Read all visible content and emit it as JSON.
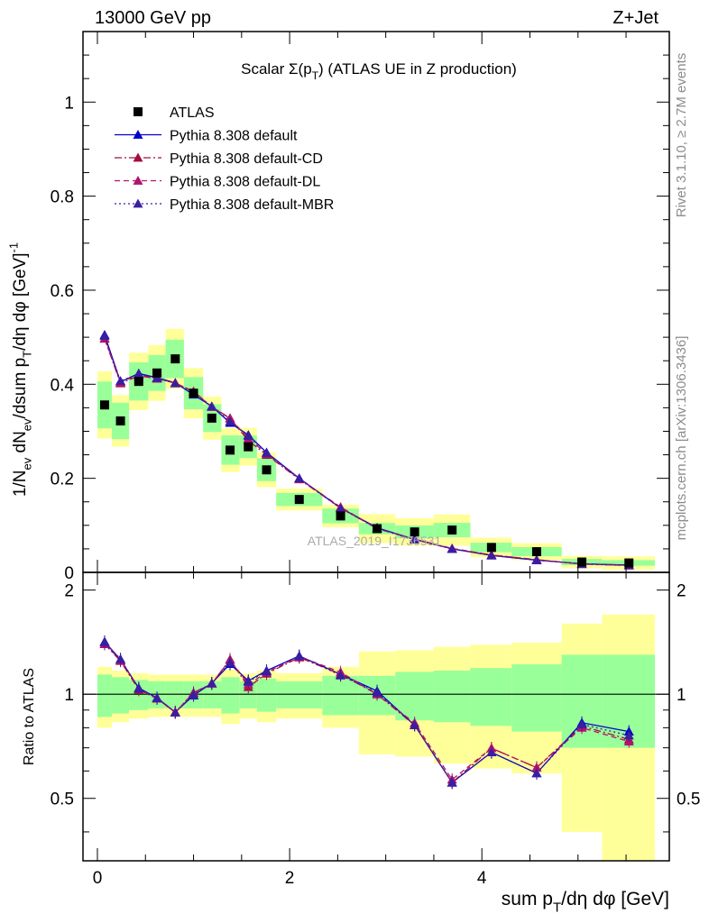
{
  "header": {
    "left": "13000 GeV pp",
    "right": "Z+Jet"
  },
  "side_labels": {
    "rivet": "Rivet 3.1.10, ≥ 2.7M events",
    "mcplots": "mcplots.cern.ch [arXiv:1306.3436]"
  },
  "chart_data": {
    "type": "scatter",
    "title": "Scalar Σ(p_T) (ATLAS UE in Z production)",
    "watermark": "ATLAS_2019_I1736531",
    "xlabel": "sum p_T/dη dφ [GeV]",
    "ylabel": "1/N_ev dN_ev/dsum p_T/dη dφ [GeV]^-1",
    "ratio_ylabel": "Ratio to ATLAS",
    "xlim": [
      -0.15,
      5.95
    ],
    "ylim": [
      0,
      1.15
    ],
    "ratio_ylim": [
      0.33,
      2.25
    ],
    "x_ticks": [
      "0",
      "2",
      "4"
    ],
    "y_ticks": [
      "0",
      "0.2",
      "0.4",
      "0.6",
      "0.8",
      "1"
    ],
    "ratio_ticks": [
      "0.5",
      "1",
      "2"
    ],
    "legend_position": "top-left",
    "legend": [
      {
        "label": "ATLAS",
        "marker": "square",
        "color": "#000000",
        "line": "none"
      },
      {
        "label": "Pythia 8.308 default",
        "marker": "triangle",
        "color": "#0000cc",
        "line": "solid"
      },
      {
        "label": "Pythia 8.308 default-CD",
        "marker": "triangle",
        "color": "#a50d3d",
        "line": "dashdot"
      },
      {
        "label": "Pythia 8.308 default-DL",
        "marker": "triangle",
        "color": "#b3126e",
        "line": "dashed"
      },
      {
        "label": "Pythia 8.308 default-MBR",
        "marker": "triangle",
        "color": "#3a1ea0",
        "line": "dotted"
      }
    ],
    "x": [
      0.075,
      0.24,
      0.43,
      0.62,
      0.81,
      1.0,
      1.19,
      1.38,
      1.57,
      1.76,
      2.1,
      2.53,
      2.91,
      3.3,
      3.69,
      4.1,
      4.57,
      5.04,
      5.53
    ],
    "x_edges": [
      0,
      0.15,
      0.33,
      0.53,
      0.71,
      0.9,
      1.1,
      1.29,
      1.48,
      1.66,
      1.86,
      2.34,
      2.72,
      3.1,
      3.5,
      3.88,
      4.31,
      4.83,
      5.25,
      5.8
    ],
    "data": {
      "name": "ATLAS",
      "values": [
        0.356,
        0.322,
        0.406,
        0.424,
        0.454,
        0.381,
        0.328,
        0.26,
        0.267,
        0.218,
        0.155,
        0.12,
        0.093,
        0.086,
        0.09,
        0.053,
        0.044,
        0.022,
        0.02
      ],
      "band_inner": [
        0.14,
        0.12,
        0.1,
        0.09,
        0.09,
        0.09,
        0.09,
        0.12,
        0.09,
        0.11,
        0.09,
        0.13,
        0.13,
        0.16,
        0.17,
        0.19,
        0.22,
        0.3,
        0.3
      ],
      "band_outer": [
        0.2,
        0.17,
        0.15,
        0.14,
        0.14,
        0.14,
        0.14,
        0.18,
        0.15,
        0.17,
        0.15,
        0.2,
        0.33,
        0.34,
        0.37,
        0.39,
        0.41,
        0.6,
        0.7
      ]
    },
    "series": [
      {
        "name": "Pythia 8.308 default",
        "color": "#0000cc",
        "dash": "",
        "values": [
          0.505,
          0.405,
          0.423,
          0.414,
          0.403,
          0.378,
          0.353,
          0.318,
          0.292,
          0.255,
          0.2,
          0.137,
          0.095,
          0.07,
          0.05,
          0.036,
          0.026,
          0.0182,
          0.0156
        ]
      },
      {
        "name": "Pythia 8.308 default-CD",
        "color": "#a50d3d",
        "dash": "8 3 2 3",
        "values": [
          0.497,
          0.402,
          0.418,
          0.412,
          0.402,
          0.385,
          0.352,
          0.328,
          0.28,
          0.25,
          0.198,
          0.137,
          0.093,
          0.07,
          0.05,
          0.037,
          0.027,
          0.0178,
          0.0148
        ]
      },
      {
        "name": "Pythia 8.308 default-DL",
        "color": "#b3126e",
        "dash": "6 4",
        "values": [
          0.498,
          0.404,
          0.421,
          0.412,
          0.403,
          0.384,
          0.352,
          0.327,
          0.285,
          0.252,
          0.199,
          0.139,
          0.093,
          0.071,
          0.051,
          0.037,
          0.027,
          0.0176,
          0.0146
        ]
      },
      {
        "name": "Pythia 8.308 default-MBR",
        "color": "#3a1ea0",
        "dash": "2 3",
        "values": [
          0.503,
          0.407,
          0.422,
          0.413,
          0.402,
          0.38,
          0.353,
          0.321,
          0.29,
          0.254,
          0.2,
          0.136,
          0.094,
          0.07,
          0.05,
          0.036,
          0.026,
          0.018,
          0.0152
        ]
      }
    ]
  }
}
